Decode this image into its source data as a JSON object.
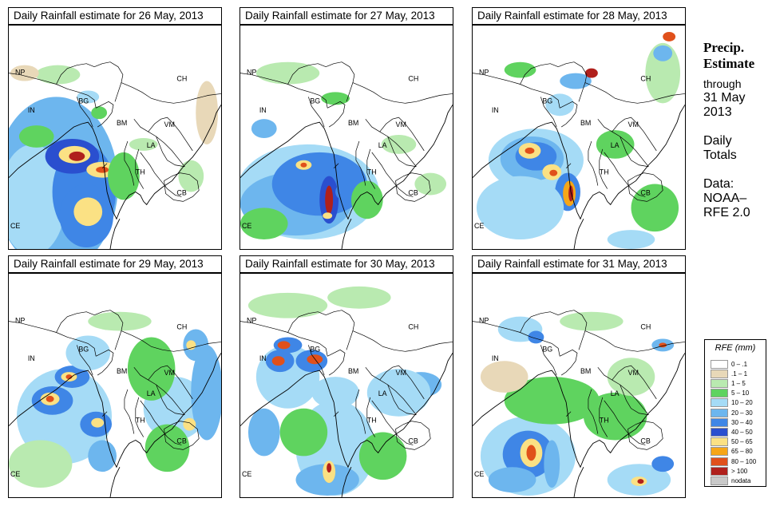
{
  "panels": [
    {
      "title": "Daily Rainfall estimate for  26 May, 2013"
    },
    {
      "title": "Daily Rainfall estimate for  27 May, 2013"
    },
    {
      "title": "Daily Rainfall estimate for  28 May, 2013"
    },
    {
      "title": "Daily Rainfall estimate for  29 May, 2013"
    },
    {
      "title": "Daily Rainfall estimate for  30 May, 2013"
    },
    {
      "title": "Daily Rainfall estimate for  31 May, 2013"
    }
  ],
  "map_labels": {
    "np": "NP",
    "ch": "CH",
    "in": "IN",
    "bg": "BG",
    "bm": "BM",
    "vm": "VM",
    "la": "LA",
    "th": "TH",
    "cb": "CB",
    "ce": "CE"
  },
  "side": {
    "title_line1": "Precip.",
    "title_line2": "Estimate",
    "through": "through",
    "date_line1": "31 May",
    "date_line2": "2013",
    "daily_line1": "Daily",
    "daily_line2": "Totals",
    "data_line1": "Data:",
    "data_line2": "NOAA–",
    "data_line3": "RFE 2.0"
  },
  "legend": {
    "title": "RFE (mm)",
    "items": [
      {
        "label": "0 – .1",
        "color": "#ffffff"
      },
      {
        "label": ".1 – 1",
        "color": "#e8d8b8"
      },
      {
        "label": "1 – 5",
        "color": "#b9eab0"
      },
      {
        "label": "5 – 10",
        "color": "#5fd35f"
      },
      {
        "label": "10 – 20",
        "color": "#a5dbf6"
      },
      {
        "label": "20 – 30",
        "color": "#6db6ee"
      },
      {
        "label": "30 – 40",
        "color": "#3f86e6"
      },
      {
        "label": "40 – 50",
        "color": "#2a4fcf"
      },
      {
        "label": "50 – 65",
        "color": "#fbe184"
      },
      {
        "label": "65 – 80",
        "color": "#f6a618"
      },
      {
        "label": "80 – 100",
        "color": "#e0501b"
      },
      {
        "label": "> 100",
        "color": "#b0201c"
      },
      {
        "label": "nodata",
        "color": "#c9c9c9"
      }
    ]
  }
}
